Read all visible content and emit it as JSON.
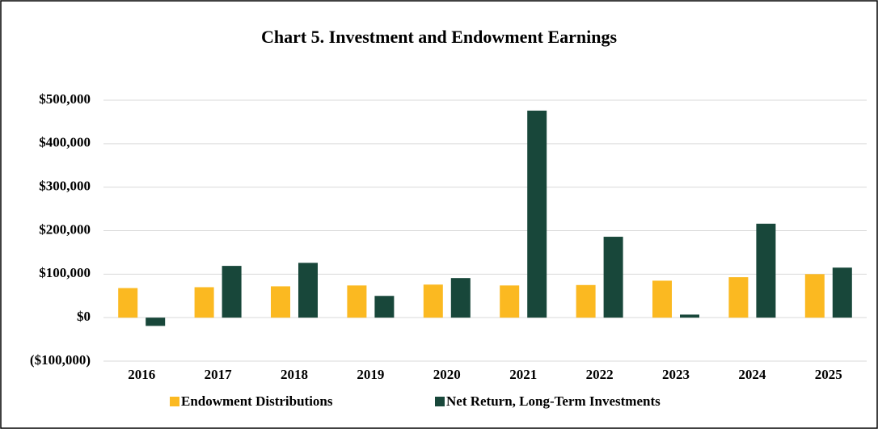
{
  "chart_data": {
    "type": "bar",
    "title": "Chart 5. Investment and Endowment Earnings",
    "categories": [
      "2016",
      "2017",
      "2018",
      "2019",
      "2020",
      "2021",
      "2022",
      "2023",
      "2024",
      "2025"
    ],
    "series": [
      {
        "name": "Endowment Distributions",
        "color": "#fbb921",
        "values": [
          68000,
          70000,
          72000,
          74000,
          76000,
          74000,
          75000,
          85000,
          93000,
          100000
        ]
      },
      {
        "name": "Net Return, Long-Term Investments",
        "color": "#18473a",
        "values": [
          -19000,
          119000,
          126000,
          50000,
          91000,
          476000,
          186000,
          7000,
          216000,
          115000
        ]
      }
    ],
    "ylim": [
      -100000,
      500000
    ],
    "yticks": [
      {
        "value": -100000,
        "label": "($100,000)"
      },
      {
        "value": 0,
        "label": "$0"
      },
      {
        "value": 100000,
        "label": "$100,000"
      },
      {
        "value": 200000,
        "label": "$200,000"
      },
      {
        "value": 300000,
        "label": "$300,000"
      },
      {
        "value": 400000,
        "label": "$400,000"
      },
      {
        "value": 500000,
        "label": "$500,000"
      }
    ],
    "grid": true,
    "legend": "bottom"
  }
}
